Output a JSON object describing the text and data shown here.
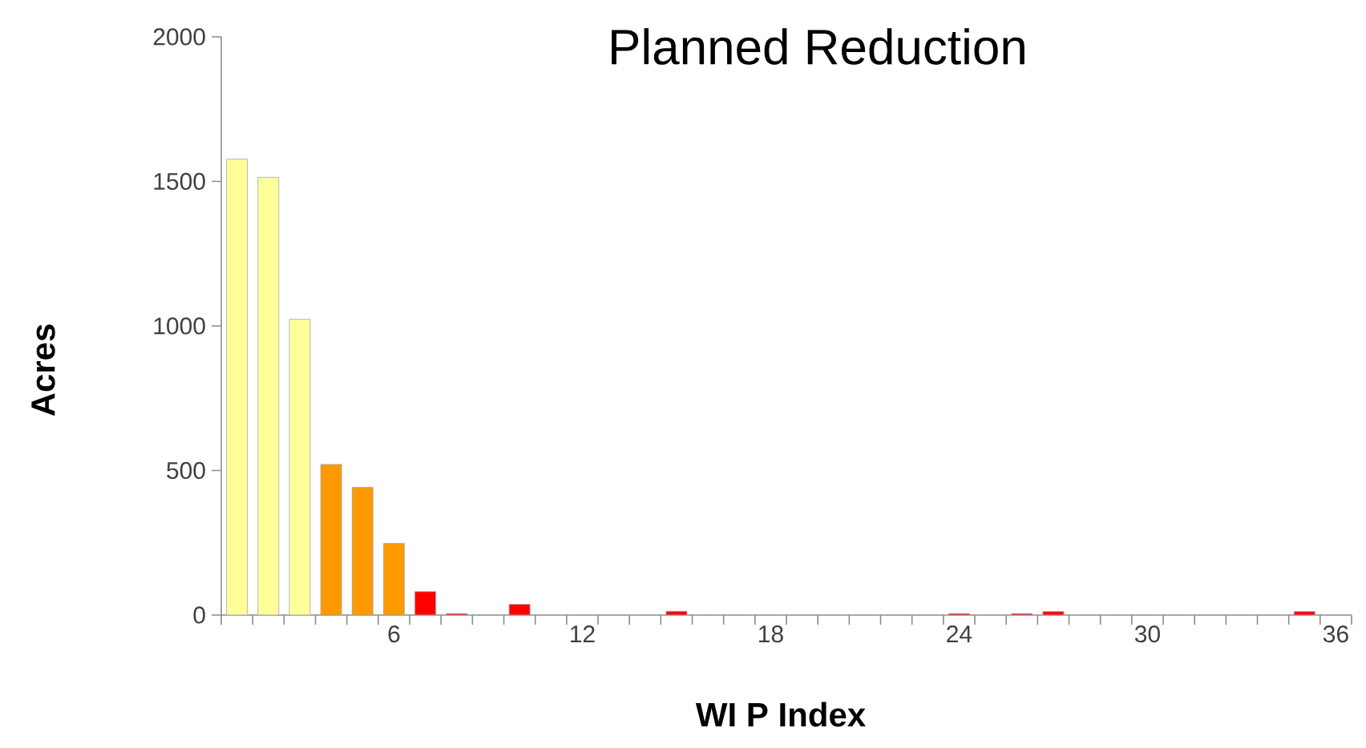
{
  "chart_data": {
    "type": "bar",
    "title": "Planned Reduction",
    "xlabel": "WI  P Index",
    "ylabel": "Acres",
    "categories": [
      null,
      null,
      null,
      null,
      null,
      "6",
      null,
      null,
      null,
      null,
      null,
      "12",
      null,
      null,
      null,
      null,
      null,
      "18",
      null,
      null,
      null,
      null,
      null,
      "24",
      null,
      null,
      null,
      null,
      null,
      "30",
      null,
      null,
      null,
      null,
      null,
      "36"
    ],
    "values": [
      1577,
      1514,
      1023,
      521,
      442,
      248,
      81,
      5,
      0,
      37,
      0,
      0,
      0,
      0,
      13,
      0,
      0,
      0,
      0,
      0,
      0,
      0,
      0,
      5,
      0,
      5,
      12,
      0,
      0,
      0,
      0,
      0,
      0,
      0,
      12,
      0
    ],
    "colors": [
      "#ffff99",
      "#ffff99",
      "#ffff99",
      "#ff9900",
      "#ff9900",
      "#ff9900",
      "#ff0000",
      "#ff0000",
      "#ff0000",
      "#ff0000",
      "#ff0000",
      "#ff0000",
      "#ff0000",
      "#ff0000",
      "#ff0000",
      "#ff0000",
      "#ff0000",
      "#ff0000",
      "#ff0000",
      "#ff0000",
      "#ff0000",
      "#ff0000",
      "#ff0000",
      "#ff0000",
      "#ff0000",
      "#ff0000",
      "#ff0000",
      "#ff0000",
      "#ff0000",
      "#ff0000",
      "#ff0000",
      "#ff0000",
      "#ff0000",
      "#ff0000",
      "#ff0000",
      "#ff0000"
    ],
    "ylim": [
      0,
      2000
    ],
    "yticks": [
      0,
      500,
      1000,
      1500,
      2000
    ]
  }
}
